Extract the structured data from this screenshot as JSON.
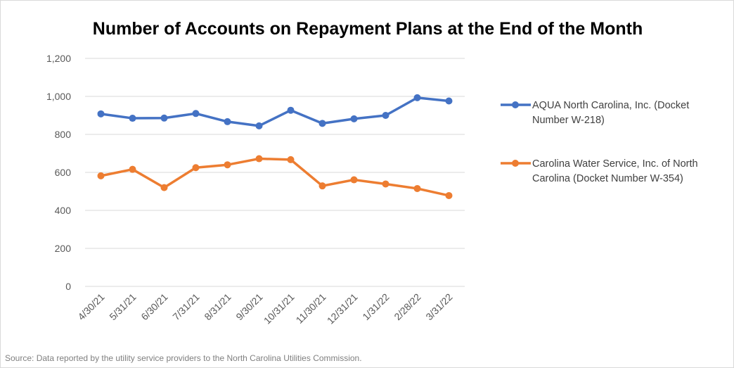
{
  "chart_data": {
    "type": "line",
    "title": "Number of Accounts on Repayment Plans at the End of the Month",
    "categories": [
      "4/30/21",
      "5/31/21",
      "6/30/21",
      "7/31/21",
      "8/31/21",
      "9/30/21",
      "10/31/21",
      "11/30/21",
      "12/31/21",
      "1/31/22",
      "2/28/22",
      "3/31/22"
    ],
    "ylim": [
      0,
      1200
    ],
    "yticks": [
      0,
      200,
      400,
      600,
      800,
      1000,
      1200
    ],
    "ytick_labels": [
      "0",
      "200",
      "400",
      "600",
      "800",
      "1,000",
      "1,200"
    ],
    "grid": true,
    "legend_position": "right",
    "series": [
      {
        "name_lines": [
          "AQUA North Carolina, Inc. (Docket",
          "Number W-218)"
        ],
        "color": "#4472c4",
        "values": [
          908,
          885,
          886,
          910,
          867,
          845,
          927,
          858,
          882,
          900,
          993,
          976
        ]
      },
      {
        "name_lines": [
          "Carolina Water Service, Inc. of North",
          "Carolina (Docket Number W-354)"
        ],
        "color": "#ed7d31",
        "values": [
          582,
          616,
          520,
          625,
          640,
          672,
          667,
          529,
          561,
          539,
          515,
          478
        ]
      }
    ]
  },
  "source_note": "Source: Data reported by the utility service providers to the North Carolina Utilities Commission."
}
